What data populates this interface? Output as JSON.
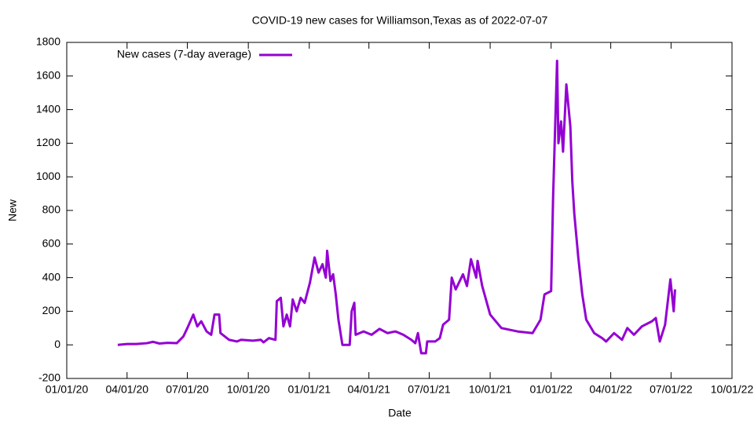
{
  "chart_data": {
    "type": "line",
    "title": "COVID-19 new cases for Williamson,Texas as of 2022-07-07",
    "x_label": "Date",
    "y_label": "New",
    "legend_position": "top-left",
    "xlim": [
      "2020-01-01",
      "2022-10-01"
    ],
    "xticks": [
      {
        "value": "2020-01-01",
        "label": "01/01/20"
      },
      {
        "value": "2020-04-01",
        "label": "04/01/20"
      },
      {
        "value": "2020-07-01",
        "label": "07/01/20"
      },
      {
        "value": "2020-10-01",
        "label": "10/01/20"
      },
      {
        "value": "2021-01-01",
        "label": "01/01/21"
      },
      {
        "value": "2021-04-01",
        "label": "04/01/21"
      },
      {
        "value": "2021-07-01",
        "label": "07/01/21"
      },
      {
        "value": "2021-10-01",
        "label": "10/01/21"
      },
      {
        "value": "2022-01-01",
        "label": "01/01/22"
      },
      {
        "value": "2022-04-01",
        "label": "04/01/22"
      },
      {
        "value": "2022-07-01",
        "label": "07/01/22"
      },
      {
        "value": "2022-10-01",
        "label": "10/01/22"
      }
    ],
    "ylim": [
      -200,
      1800
    ],
    "yticks": [
      -200,
      0,
      200,
      400,
      600,
      800,
      1000,
      1200,
      1400,
      1600,
      1800
    ],
    "x": [
      "2020-03-18",
      "2020-04-01",
      "2020-04-15",
      "2020-05-01",
      "2020-05-10",
      "2020-05-20",
      "2020-06-01",
      "2020-06-15",
      "2020-06-25",
      "2020-07-01",
      "2020-07-10",
      "2020-07-16",
      "2020-07-22",
      "2020-07-30",
      "2020-08-06",
      "2020-08-11",
      "2020-08-18",
      "2020-08-20",
      "2020-09-02",
      "2020-09-14",
      "2020-09-20",
      "2020-10-08",
      "2020-10-20",
      "2020-10-24",
      "2020-11-01",
      "2020-11-11",
      "2020-11-13",
      "2020-11-19",
      "2020-11-23",
      "2020-11-28",
      "2020-12-03",
      "2020-12-07",
      "2020-12-13",
      "2020-12-19",
      "2020-12-25",
      "2021-01-02",
      "2021-01-09",
      "2021-01-15",
      "2021-01-21",
      "2021-01-26",
      "2021-01-28",
      "2021-02-02",
      "2021-02-06",
      "2021-02-10",
      "2021-02-14",
      "2021-02-20",
      "2021-03-03",
      "2021-03-06",
      "2021-03-10",
      "2021-03-12",
      "2021-03-24",
      "2021-04-05",
      "2021-04-17",
      "2021-04-29",
      "2021-05-11",
      "2021-05-23",
      "2021-06-04",
      "2021-06-10",
      "2021-06-14",
      "2021-06-19",
      "2021-06-26",
      "2021-06-28",
      "2021-07-10",
      "2021-07-17",
      "2021-07-22",
      "2021-07-31",
      "2021-08-04",
      "2021-08-10",
      "2021-08-21",
      "2021-08-27",
      "2021-09-02",
      "2021-09-10",
      "2021-09-12",
      "2021-09-19",
      "2021-10-01",
      "2021-10-18",
      "2021-11-11",
      "2021-12-04",
      "2021-12-16",
      "2021-12-22",
      "2022-01-01",
      "2022-01-04",
      "2022-01-10",
      "2022-01-12",
      "2022-01-16",
      "2022-01-19",
      "2022-01-24",
      "2022-01-30",
      "2022-02-02",
      "2022-02-05",
      "2022-02-11",
      "2022-02-17",
      "2022-02-23",
      "2022-03-07",
      "2022-03-19",
      "2022-03-25",
      "2022-04-06",
      "2022-04-18",
      "2022-04-26",
      "2022-05-06",
      "2022-05-18",
      "2022-06-02",
      "2022-06-08",
      "2022-06-14",
      "2022-06-22",
      "2022-06-30",
      "2022-07-05",
      "2022-07-07"
    ],
    "series": [
      {
        "name": "New cases (7-day average)",
        "color": "#9400d3",
        "values": [
          0,
          5,
          5,
          10,
          18,
          8,
          12,
          10,
          50,
          100,
          180,
          110,
          140,
          80,
          60,
          180,
          180,
          70,
          30,
          20,
          30,
          25,
          30,
          15,
          40,
          30,
          260,
          280,
          110,
          180,
          110,
          270,
          200,
          280,
          250,
          370,
          520,
          430,
          480,
          400,
          560,
          380,
          420,
          300,
          150,
          0,
          0,
          200,
          250,
          60,
          80,
          60,
          95,
          70,
          80,
          60,
          30,
          10,
          70,
          -50,
          -50,
          20,
          20,
          40,
          120,
          150,
          400,
          330,
          420,
          350,
          510,
          400,
          500,
          350,
          180,
          100,
          80,
          70,
          150,
          300,
          320,
          880,
          1690,
          1200,
          1330,
          1150,
          1550,
          1300,
          970,
          780,
          520,
          300,
          150,
          70,
          40,
          20,
          70,
          30,
          100,
          60,
          110,
          140,
          160,
          20,
          120,
          390,
          200,
          330
        ]
      }
    ]
  }
}
